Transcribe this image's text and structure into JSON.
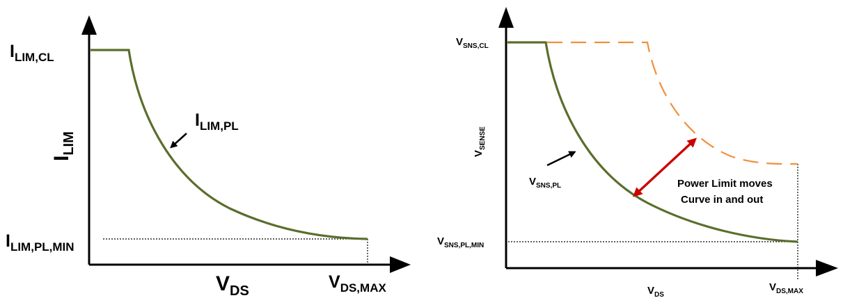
{
  "left_panel": {
    "y_top_label": {
      "base": "I",
      "sub": "LIM,CL"
    },
    "y_bottom_label": {
      "base": "I",
      "sub": "LIM,PL,MIN"
    },
    "y_axis_title": {
      "base": "I",
      "sub": "LIM"
    },
    "curve_label": {
      "base": "I",
      "sub": "LIM,PL"
    },
    "x_axis_title": {
      "base": "V",
      "sub": "DS"
    },
    "x_max_label": {
      "base": "V",
      "sub": "DS,MAX"
    }
  },
  "right_panel": {
    "y_top_label": {
      "base": "V",
      "sub": "SNS,CL"
    },
    "y_bottom_label": {
      "base": "V",
      "sub": "SNS,PL,MIN"
    },
    "y_axis_title": {
      "base": "V",
      "sub": "SENSE"
    },
    "curve_label": {
      "base": "V",
      "sub": "SNS,PL"
    },
    "x_axis_title": {
      "base": "V",
      "sub": "DS"
    },
    "x_max_label": {
      "base": "V",
      "sub": "DS,MAX"
    },
    "annotation_line1": "Power Limit moves",
    "annotation_line2": "Curve in and out"
  },
  "colors": {
    "curve": "#5a6e2c",
    "dashed_curve": "#f0903a",
    "arrow_red": "#cc0000",
    "axis": "#000000"
  }
}
